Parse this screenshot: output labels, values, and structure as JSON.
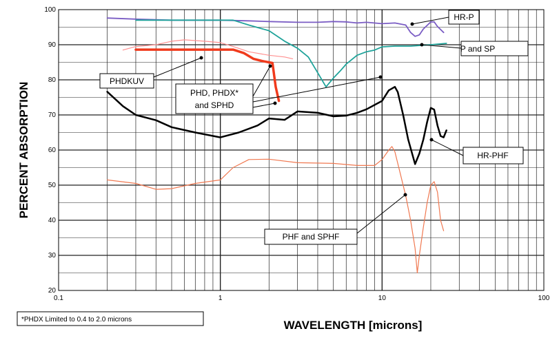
{
  "chart_data": {
    "type": "line",
    "xlabel": "WAVELENGTH [microns]",
    "ylabel": "PERCENT ABSORPTION",
    "xscale": "log",
    "xlim": [
      0.1,
      100
    ],
    "ylim": [
      20,
      100
    ],
    "x_ticks": [
      "0.1",
      "1",
      "10",
      "100"
    ],
    "y_ticks": [
      "20",
      "30",
      "40",
      "50",
      "60",
      "70",
      "80",
      "90",
      "100"
    ],
    "grid": true,
    "series": [
      {
        "name": "HR-P",
        "color": "#7a5cc4",
        "width": 1.8,
        "points": [
          [
            0.2,
            97.6
          ],
          [
            0.3,
            97.3
          ],
          [
            0.5,
            97
          ],
          [
            1,
            97
          ],
          [
            1.5,
            96.8
          ],
          [
            2,
            96.6
          ],
          [
            3,
            96.4
          ],
          [
            4,
            96.4
          ],
          [
            5,
            96.6
          ],
          [
            6,
            96.5
          ],
          [
            7,
            96.2
          ],
          [
            8,
            96.4
          ],
          [
            10,
            96
          ],
          [
            12,
            96.2
          ],
          [
            14,
            95.6
          ],
          [
            15,
            93.5
          ],
          [
            16,
            92.4
          ],
          [
            17,
            92.8
          ],
          [
            18,
            94.5
          ],
          [
            20,
            96.5
          ],
          [
            21,
            96.5
          ],
          [
            22,
            95.2
          ],
          [
            24,
            93.5
          ]
        ]
      },
      {
        "name": "P and SP",
        "color": "#1fa39a",
        "width": 1.8,
        "points": [
          [
            0.3,
            97
          ],
          [
            1,
            97
          ],
          [
            1.2,
            97
          ],
          [
            1.5,
            95.6
          ],
          [
            2,
            94
          ],
          [
            2.5,
            91
          ],
          [
            3,
            89
          ],
          [
            3.5,
            86.5
          ],
          [
            4,
            82
          ],
          [
            4.5,
            78
          ],
          [
            5,
            80.5
          ],
          [
            5.5,
            82.5
          ],
          [
            6,
            84.5
          ],
          [
            7,
            87
          ],
          [
            8,
            88
          ],
          [
            9,
            88.5
          ],
          [
            10,
            89.4
          ],
          [
            12,
            89.6
          ],
          [
            15,
            89.6
          ],
          [
            20,
            90
          ],
          [
            25,
            90.4
          ]
        ]
      },
      {
        "name": "PHDKUV",
        "color": "#ff9090",
        "width": 1.2,
        "points": [
          [
            0.25,
            88.5
          ],
          [
            0.3,
            89.5
          ],
          [
            0.4,
            90
          ],
          [
            0.5,
            91
          ],
          [
            0.6,
            91.4
          ],
          [
            0.8,
            91
          ],
          [
            1,
            90.6
          ],
          [
            1.2,
            89.5
          ],
          [
            1.5,
            88
          ],
          [
            2,
            87
          ],
          [
            2.5,
            86.5
          ],
          [
            2.8,
            86
          ]
        ]
      },
      {
        "name": "PHD, PHDX* and SPHD",
        "color": "#f03a1c",
        "width": 3.5,
        "points": [
          [
            0.3,
            88.6
          ],
          [
            0.5,
            88.6
          ],
          [
            1,
            88.6
          ],
          [
            1.2,
            88.6
          ],
          [
            1.4,
            87.6
          ],
          [
            1.6,
            86
          ],
          [
            1.8,
            85.4
          ],
          [
            2.1,
            84.8
          ],
          [
            2.2,
            78
          ],
          [
            2.3,
            74
          ]
        ]
      },
      {
        "name": "HR-PHF",
        "color": "#000000",
        "width": 2.5,
        "points": [
          [
            0.2,
            76.6
          ],
          [
            0.25,
            72.5
          ],
          [
            0.3,
            70
          ],
          [
            0.4,
            68.5
          ],
          [
            0.5,
            66.5
          ],
          [
            0.7,
            65
          ],
          [
            1,
            63.6
          ],
          [
            1.3,
            65
          ],
          [
            1.7,
            67
          ],
          [
            2,
            69
          ],
          [
            2.5,
            68.6
          ],
          [
            3,
            71
          ],
          [
            4,
            70.6
          ],
          [
            5,
            69.6
          ],
          [
            6,
            69.8
          ],
          [
            7,
            70.6
          ],
          [
            8,
            71.6
          ],
          [
            10,
            74
          ],
          [
            11,
            77
          ],
          [
            12,
            78
          ],
          [
            12.5,
            76.5
          ],
          [
            13.5,
            70
          ],
          [
            14.5,
            63
          ],
          [
            16,
            56
          ],
          [
            17,
            59
          ],
          [
            18,
            63
          ],
          [
            19,
            68
          ],
          [
            20,
            72
          ],
          [
            21,
            71.5
          ],
          [
            22,
            67
          ],
          [
            23,
            64
          ],
          [
            24,
            63.6
          ],
          [
            25,
            65.6
          ]
        ]
      },
      {
        "name": "PHF and SPHF",
        "color": "#f07850",
        "width": 1.2,
        "points": [
          [
            0.2,
            51.5
          ],
          [
            0.3,
            50.5
          ],
          [
            0.4,
            48.8
          ],
          [
            0.5,
            49
          ],
          [
            0.7,
            50.5
          ],
          [
            1,
            51.5
          ],
          [
            1.2,
            55
          ],
          [
            1.5,
            57.3
          ],
          [
            2,
            57.4
          ],
          [
            3,
            56.4
          ],
          [
            5,
            56.2
          ],
          [
            7,
            55.6
          ],
          [
            9,
            55.6
          ],
          [
            10,
            57.3
          ],
          [
            11,
            60
          ],
          [
            11.5,
            61
          ],
          [
            12,
            59.5
          ],
          [
            13,
            53
          ],
          [
            14,
            47
          ],
          [
            15,
            40
          ],
          [
            16,
            32
          ],
          [
            16.5,
            25
          ],
          [
            17,
            30
          ],
          [
            18,
            38
          ],
          [
            19,
            45
          ],
          [
            20,
            50
          ],
          [
            21,
            51
          ],
          [
            22,
            48
          ],
          [
            23,
            40
          ],
          [
            24,
            37
          ]
        ]
      }
    ],
    "annotations": [
      {
        "text": "HR-P"
      },
      {
        "text": "P and SP"
      },
      {
        "text": "PHDKUV"
      },
      {
        "lines": [
          "PHD, PHDX*",
          "and SPHD"
        ]
      },
      {
        "text": "HR-PHF"
      },
      {
        "text": "PHF and SPHF"
      }
    ],
    "footnote": "*PHDX Limited to 0.4 to 2.0 microns"
  }
}
